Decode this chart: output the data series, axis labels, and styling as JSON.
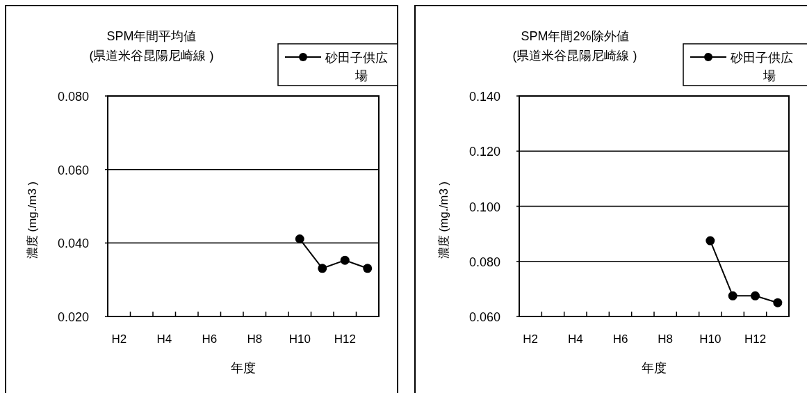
{
  "chart_data": [
    {
      "type": "line",
      "title": "SPM年間平均値\n(県道米谷昆陽尼崎線 )",
      "xlabel": "年度",
      "ylabel": "濃度 (mg./m3 )",
      "categories": [
        "H2",
        null,
        "H4",
        null,
        "H6",
        null,
        "H8",
        null,
        "H10",
        null,
        "H12",
        null
      ],
      "series": [
        {
          "name": "砂田子供広場",
          "color": "#000000",
          "values": [
            null,
            null,
            null,
            null,
            null,
            null,
            null,
            null,
            0.0411,
            0.0331,
            0.0353,
            0.0331
          ]
        }
      ],
      "ylim": [
        0.02,
        0.08
      ],
      "yticks": [
        {
          "value": 0.02,
          "label": "0.020"
        },
        {
          "value": 0.04,
          "label": "0.040"
        },
        {
          "value": 0.06,
          "label": "0.060"
        },
        {
          "value": 0.08,
          "label": "0.080"
        }
      ],
      "grid": "y",
      "legend": "top right",
      "marker": "circle",
      "line_style": "solid"
    },
    {
      "type": "line",
      "title": "SPM年間2%除外値\n(県道米谷昆陽尼崎線 )",
      "xlabel": "年度",
      "ylabel": "濃度 (mg./m3 )",
      "categories": [
        "H2",
        null,
        "H4",
        null,
        "H6",
        null,
        "H8",
        null,
        "H10",
        null,
        "H12",
        null
      ],
      "series": [
        {
          "name": "砂田子供広場",
          "color": "#000000",
          "values": [
            null,
            null,
            null,
            null,
            null,
            null,
            null,
            null,
            0.0875,
            0.0675,
            0.0675,
            0.065
          ]
        }
      ],
      "ylim": [
        0.06,
        0.14
      ],
      "yticks": [
        {
          "value": 0.06,
          "label": "0.060"
        },
        {
          "value": 0.08,
          "label": "0.080"
        },
        {
          "value": 0.1,
          "label": "0.100"
        },
        {
          "value": 0.12,
          "label": "0.120"
        },
        {
          "value": 0.14,
          "label": "0.140"
        }
      ],
      "grid": "y",
      "legend": "top right",
      "marker": "circle",
      "line_style": "solid"
    }
  ]
}
